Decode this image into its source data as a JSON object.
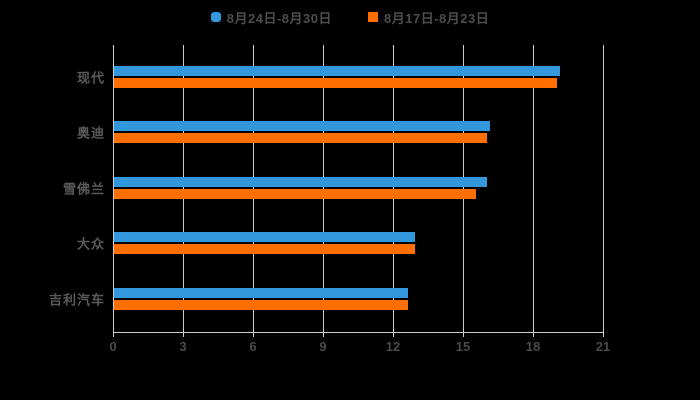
{
  "chart_data": {
    "type": "bar",
    "orientation": "horizontal",
    "title": "",
    "xlabel": "",
    "ylabel": "",
    "categories": [
      "现代",
      "奥迪",
      "雪佛兰",
      "大众",
      "吉利汽车"
    ],
    "series": [
      {
        "name": "8月24日-8月30日",
        "color": "#3398DB",
        "values": [
          19.1,
          16.1,
          16.0,
          12.9,
          12.6
        ]
      },
      {
        "name": "8月17日-8月23日",
        "color": "#FF6F00",
        "values": [
          19.0,
          16.0,
          15.5,
          12.9,
          12.6
        ]
      }
    ],
    "x_ticks": [
      0,
      3,
      6,
      9,
      12,
      15,
      18,
      21
    ],
    "xlim": [
      0,
      21
    ],
    "grid": true,
    "legend_position": "top-center"
  },
  "legend": {
    "items": [
      {
        "label": "8月24日-8月30日",
        "color": "#3398DB",
        "marker": "rounded-square"
      },
      {
        "label": "8月17日-8月23日",
        "color": "#FF6F00",
        "marker": "square"
      }
    ]
  },
  "colors": {
    "background": "#000000",
    "grid_line": "#cccccc",
    "axis_line": "#cccccc",
    "tick_text": "#4a4a4a",
    "category_text": "#5a5a5a",
    "legend_text": "#4d4d4d"
  }
}
